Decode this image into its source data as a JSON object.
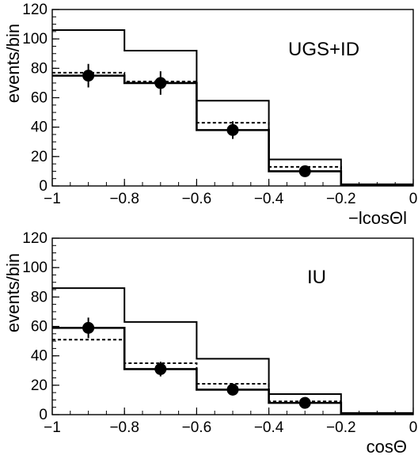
{
  "chart_data": [
    {
      "type": "line",
      "panel_label": "UGS+ID",
      "xlabel": "−lcosΘl",
      "ylabel": "events/bin",
      "xlim": [
        -1,
        0
      ],
      "ylim": [
        0,
        120
      ],
      "x_tick_labels": [
        "−1",
        "−0.8",
        "−0.6",
        "−0.4",
        "−0.2",
        "0"
      ],
      "y_tick_labels": [
        "0",
        "20",
        "40",
        "60",
        "80",
        "100",
        "120"
      ],
      "bin_edges": [
        -1,
        -0.8,
        -0.6,
        -0.4,
        -0.2,
        0
      ],
      "series": [
        {
          "style": "solid-thick",
          "values": [
            75,
            70,
            38,
            10,
            1
          ]
        },
        {
          "style": "solid-thin",
          "values": [
            106,
            92,
            58,
            18,
            1
          ]
        },
        {
          "style": "dashed",
          "values": [
            77,
            71,
            43,
            13,
            1
          ]
        }
      ],
      "points": [
        {
          "x": -0.9,
          "y": 75,
          "err": 8
        },
        {
          "x": -0.7,
          "y": 70,
          "err": 8
        },
        {
          "x": -0.5,
          "y": 38,
          "err": 6
        },
        {
          "x": -0.3,
          "y": 10,
          "err": 3
        }
      ]
    },
    {
      "type": "line",
      "panel_label": "IU",
      "xlabel": "cosΘ",
      "ylabel": "events/bin",
      "xlim": [
        -1,
        0
      ],
      "ylim": [
        0,
        120
      ],
      "x_tick_labels": [
        "−1",
        "−0.8",
        "−0.6",
        "−0.4",
        "−0.2",
        "0"
      ],
      "y_tick_labels": [
        "0",
        "20",
        "40",
        "60",
        "80",
        "100",
        "120"
      ],
      "bin_edges": [
        -1,
        -0.8,
        -0.6,
        -0.4,
        -0.2,
        0
      ],
      "series": [
        {
          "style": "solid-thick",
          "values": [
            59,
            31,
            17,
            8,
            1
          ]
        },
        {
          "style": "solid-thin",
          "values": [
            86,
            63,
            38,
            14,
            1
          ]
        },
        {
          "style": "dashed",
          "values": [
            51,
            35,
            21,
            9,
            1
          ]
        }
      ],
      "points": [
        {
          "x": -0.9,
          "y": 59,
          "err": 7
        },
        {
          "x": -0.7,
          "y": 31,
          "err": 5
        },
        {
          "x": -0.5,
          "y": 17,
          "err": 4
        },
        {
          "x": -0.3,
          "y": 8,
          "err": 2
        }
      ]
    }
  ]
}
